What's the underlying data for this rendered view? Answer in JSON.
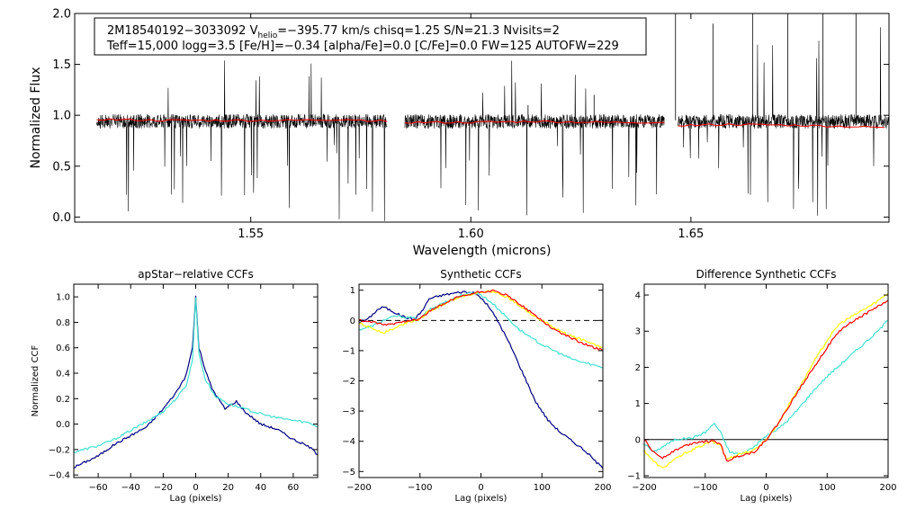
{
  "chart_data": [
    {
      "type": "line",
      "id": "spectrum",
      "info": {
        "line1_prefix": "2M18540192−3033092  V",
        "line1_sub": "helio",
        "line1_suffix": "=−395.77 km/s  chisq=1.25  S/N=21.3  Nvisits=2",
        "line2": "Teff=15,000 logg=3.5 [Fe/H]=−0.34 [alpha/Fe]=0.0 [C/Fe]=0.0 FW=125 AUTOFW=229"
      },
      "xlabel": "Wavelength (microns)",
      "ylabel": "Normalized Flux",
      "xlim": [
        1.51,
        1.695
      ],
      "ylim": [
        -0.05,
        2.0
      ],
      "xticks": [
        1.55,
        1.6,
        1.65
      ],
      "xtick_labels": [
        "1.55",
        "1.60",
        "1.65"
      ],
      "yticks": [
        0.0,
        0.5,
        1.0,
        1.5,
        2.0
      ],
      "ytick_labels": [
        "0.0",
        "0.5",
        "1.0",
        "1.5",
        "2.0"
      ],
      "chips": [
        [
          1.515,
          1.581
        ],
        [
          1.585,
          1.644
        ],
        [
          1.647,
          1.696
        ]
      ],
      "series": [
        {
          "name": "observed",
          "color": "#000000"
        },
        {
          "name": "model",
          "color": "#ff0000",
          "points": [
            [
              1.515,
              0.96
            ],
            [
              1.53,
              0.95
            ],
            [
              1.545,
              0.95
            ],
            [
              1.56,
              0.95
            ],
            [
              1.572,
              0.96
            ],
            [
              1.581,
              0.94
            ],
            [
              1.585,
              0.93
            ],
            [
              1.6,
              0.93
            ],
            [
              1.615,
              0.94
            ],
            [
              1.63,
              0.93
            ],
            [
              1.644,
              0.93
            ],
            [
              1.647,
              0.9
            ],
            [
              1.66,
              0.91
            ],
            [
              1.675,
              0.9
            ],
            [
              1.685,
              0.89
            ],
            [
              1.694,
              0.88
            ]
          ]
        }
      ]
    },
    {
      "type": "line",
      "id": "apstar",
      "title": "apStar−relative CCFs",
      "xlabel": "Lag (pixels)",
      "ylabel": "Normalized CCF",
      "xlim": [
        -75,
        75
      ],
      "ylim": [
        -0.42,
        1.1
      ],
      "xticks": [
        -60,
        -40,
        -20,
        0,
        20,
        40,
        60
      ],
      "xtick_labels": [
        "−60",
        "−40",
        "−20",
        "0",
        "20",
        "40",
        "60"
      ],
      "yticks": [
        -0.4,
        -0.2,
        0.0,
        0.2,
        0.4,
        0.6,
        0.8,
        1.0
      ],
      "ytick_labels": [
        "−0.4",
        "−0.2",
        "0.0",
        "0.2",
        "0.4",
        "0.6",
        "0.8",
        "1.0"
      ],
      "series": [
        {
          "name": "navy",
          "color": "#000080",
          "points": [
            [
              -75,
              -0.34
            ],
            [
              -60,
              -0.25
            ],
            [
              -50,
              -0.16
            ],
            [
              -40,
              -0.09
            ],
            [
              -30,
              -0.02
            ],
            [
              -20,
              0.12
            ],
            [
              -12,
              0.25
            ],
            [
              -6,
              0.38
            ],
            [
              -2,
              0.6
            ],
            [
              0,
              1.0
            ],
            [
              2,
              0.6
            ],
            [
              6,
              0.42
            ],
            [
              10,
              0.28
            ],
            [
              18,
              0.12
            ],
            [
              25,
              0.18
            ],
            [
              30,
              0.1
            ],
            [
              40,
              0.0
            ],
            [
              50,
              -0.04
            ],
            [
              60,
              -0.12
            ],
            [
              70,
              -0.18
            ],
            [
              75,
              -0.24
            ]
          ]
        },
        {
          "name": "turquoise",
          "color": "#40e0d0",
          "points": [
            [
              -75,
              -0.22
            ],
            [
              -60,
              -0.17
            ],
            [
              -50,
              -0.12
            ],
            [
              -40,
              -0.05
            ],
            [
              -30,
              0.02
            ],
            [
              -20,
              0.1
            ],
            [
              -12,
              0.2
            ],
            [
              -6,
              0.3
            ],
            [
              -2,
              0.5
            ],
            [
              0,
              1.0
            ],
            [
              2,
              0.55
            ],
            [
              6,
              0.35
            ],
            [
              12,
              0.22
            ],
            [
              20,
              0.16
            ],
            [
              30,
              0.12
            ],
            [
              40,
              0.08
            ],
            [
              50,
              0.05
            ],
            [
              60,
              0.03
            ],
            [
              70,
              0.01
            ],
            [
              75,
              -0.02
            ]
          ]
        }
      ]
    },
    {
      "type": "line",
      "id": "synthetic",
      "title": "Synthetic CCFs",
      "xlabel": "Lag (pixels)",
      "xlim": [
        -200,
        200
      ],
      "ylim": [
        -5.2,
        1.2
      ],
      "xticks": [
        -200,
        -100,
        0,
        100,
        200
      ],
      "xtick_labels": [
        "−200",
        "−100",
        "0",
        "100",
        "200"
      ],
      "yticks": [
        -5,
        -4,
        -3,
        -2,
        -1,
        0,
        1
      ],
      "ytick_labels": [
        "−5",
        "−4",
        "−3",
        "−2",
        "−1",
        "0",
        "1"
      ],
      "series": [
        {
          "name": "navy",
          "color": "#000080",
          "points": [
            [
              -200,
              -0.05
            ],
            [
              -185,
              0.05
            ],
            [
              -170,
              0.35
            ],
            [
              -160,
              0.45
            ],
            [
              -150,
              0.35
            ],
            [
              -130,
              0.15
            ],
            [
              -110,
              0.02
            ],
            [
              -95,
              0.35
            ],
            [
              -85,
              0.72
            ],
            [
              -60,
              0.85
            ],
            [
              -30,
              0.95
            ],
            [
              -10,
              0.9
            ],
            [
              0,
              0.75
            ],
            [
              15,
              0.4
            ],
            [
              30,
              -0.1
            ],
            [
              50,
              -0.9
            ],
            [
              70,
              -1.8
            ],
            [
              90,
              -2.7
            ],
            [
              110,
              -3.3
            ],
            [
              130,
              -3.7
            ],
            [
              150,
              -4.0
            ],
            [
              170,
              -4.3
            ],
            [
              185,
              -4.6
            ],
            [
              200,
              -4.9
            ]
          ]
        },
        {
          "name": "turquoise",
          "color": "#40e0d0",
          "points": [
            [
              -200,
              -0.3
            ],
            [
              -180,
              -0.2
            ],
            [
              -160,
              0.0
            ],
            [
              -140,
              0.15
            ],
            [
              -120,
              0.1
            ],
            [
              -100,
              0.05
            ],
            [
              -85,
              0.35
            ],
            [
              -60,
              0.6
            ],
            [
              -30,
              0.85
            ],
            [
              -10,
              0.92
            ],
            [
              0,
              0.85
            ],
            [
              20,
              0.55
            ],
            [
              40,
              0.15
            ],
            [
              60,
              -0.25
            ],
            [
              80,
              -0.55
            ],
            [
              100,
              -0.8
            ],
            [
              120,
              -1.0
            ],
            [
              140,
              -1.2
            ],
            [
              160,
              -1.35
            ],
            [
              180,
              -1.45
            ],
            [
              200,
              -1.55
            ]
          ]
        },
        {
          "name": "yellow",
          "color": "#ffff00",
          "points": [
            [
              -200,
              -0.1
            ],
            [
              -180,
              -0.25
            ],
            [
              -160,
              -0.4
            ],
            [
              -140,
              -0.25
            ],
            [
              -120,
              -0.05
            ],
            [
              -100,
              0.05
            ],
            [
              -85,
              0.3
            ],
            [
              -60,
              0.55
            ],
            [
              -40,
              0.75
            ],
            [
              -20,
              0.85
            ],
            [
              0,
              0.95
            ],
            [
              20,
              0.95
            ],
            [
              40,
              0.8
            ],
            [
              60,
              0.55
            ],
            [
              80,
              0.25
            ],
            [
              100,
              0.0
            ],
            [
              120,
              -0.25
            ],
            [
              140,
              -0.45
            ],
            [
              160,
              -0.6
            ],
            [
              180,
              -0.75
            ],
            [
              200,
              -0.9
            ]
          ]
        },
        {
          "name": "red",
          "color": "#ff0000",
          "points": [
            [
              -200,
              0.0
            ],
            [
              -180,
              -0.05
            ],
            [
              -160,
              -0.15
            ],
            [
              -140,
              -0.1
            ],
            [
              -120,
              0.0
            ],
            [
              -100,
              0.05
            ],
            [
              -85,
              0.3
            ],
            [
              -60,
              0.55
            ],
            [
              -40,
              0.75
            ],
            [
              -20,
              0.85
            ],
            [
              0,
              0.95
            ],
            [
              20,
              0.97
            ],
            [
              40,
              0.85
            ],
            [
              60,
              0.6
            ],
            [
              80,
              0.3
            ],
            [
              100,
              0.0
            ],
            [
              120,
              -0.3
            ],
            [
              140,
              -0.5
            ],
            [
              160,
              -0.7
            ],
            [
              180,
              -0.85
            ],
            [
              200,
              -1.0
            ]
          ]
        }
      ],
      "hline": 0
    },
    {
      "type": "line",
      "id": "difference",
      "title": "Difference Synthetic CCFs",
      "xlabel": "Lag (pixels)",
      "xlim": [
        -200,
        200
      ],
      "ylim": [
        -1.05,
        4.3
      ],
      "xticks": [
        -200,
        -100,
        0,
        100,
        200
      ],
      "xtick_labels": [
        "−200",
        "−100",
        "0",
        "100",
        "200"
      ],
      "yticks": [
        -1,
        0,
        1,
        2,
        3,
        4
      ],
      "ytick_labels": [
        "−1",
        "0",
        "1",
        "2",
        "3",
        "4"
      ],
      "series": [
        {
          "name": "turquoise",
          "color": "#40e0d0",
          "points": [
            [
              -200,
              -0.1
            ],
            [
              -185,
              -0.35
            ],
            [
              -170,
              -0.2
            ],
            [
              -150,
              0.0
            ],
            [
              -120,
              0.05
            ],
            [
              -100,
              0.2
            ],
            [
              -85,
              0.45
            ],
            [
              -75,
              0.2
            ],
            [
              -60,
              -0.35
            ],
            [
              -40,
              -0.4
            ],
            [
              -20,
              -0.2
            ],
            [
              0,
              0.1
            ],
            [
              20,
              0.3
            ],
            [
              40,
              0.6
            ],
            [
              60,
              1.0
            ],
            [
              80,
              1.4
            ],
            [
              100,
              1.75
            ],
            [
              120,
              2.05
            ],
            [
              140,
              2.35
            ],
            [
              160,
              2.65
            ],
            [
              180,
              2.95
            ],
            [
              200,
              3.3
            ]
          ]
        },
        {
          "name": "yellow",
          "color": "#ffff00",
          "points": [
            [
              -200,
              -0.3
            ],
            [
              -185,
              -0.6
            ],
            [
              -170,
              -0.8
            ],
            [
              -155,
              -0.6
            ],
            [
              -130,
              -0.35
            ],
            [
              -110,
              -0.2
            ],
            [
              -90,
              -0.05
            ],
            [
              -75,
              -0.15
            ],
            [
              -65,
              -0.55
            ],
            [
              -45,
              -0.4
            ],
            [
              -20,
              -0.3
            ],
            [
              0,
              0.0
            ],
            [
              20,
              0.45
            ],
            [
              40,
              1.05
            ],
            [
              60,
              1.6
            ],
            [
              80,
              2.2
            ],
            [
              100,
              2.75
            ],
            [
              120,
              3.2
            ],
            [
              140,
              3.4
            ],
            [
              160,
              3.6
            ],
            [
              180,
              3.8
            ],
            [
              200,
              4.05
            ]
          ]
        },
        {
          "name": "red",
          "color": "#ff0000",
          "points": [
            [
              -200,
              0.0
            ],
            [
              -185,
              -0.35
            ],
            [
              -170,
              -0.5
            ],
            [
              -150,
              -0.3
            ],
            [
              -130,
              -0.15
            ],
            [
              -110,
              -0.05
            ],
            [
              -90,
              -0.05
            ],
            [
              -75,
              -0.1
            ],
            [
              -65,
              -0.6
            ],
            [
              -45,
              -0.45
            ],
            [
              -20,
              -0.35
            ],
            [
              0,
              0.0
            ],
            [
              20,
              0.45
            ],
            [
              40,
              1.0
            ],
            [
              60,
              1.55
            ],
            [
              80,
              2.05
            ],
            [
              100,
              2.55
            ],
            [
              120,
              3.0
            ],
            [
              140,
              3.25
            ],
            [
              160,
              3.45
            ],
            [
              180,
              3.65
            ],
            [
              200,
              3.85
            ]
          ]
        }
      ],
      "hline": 0
    }
  ]
}
